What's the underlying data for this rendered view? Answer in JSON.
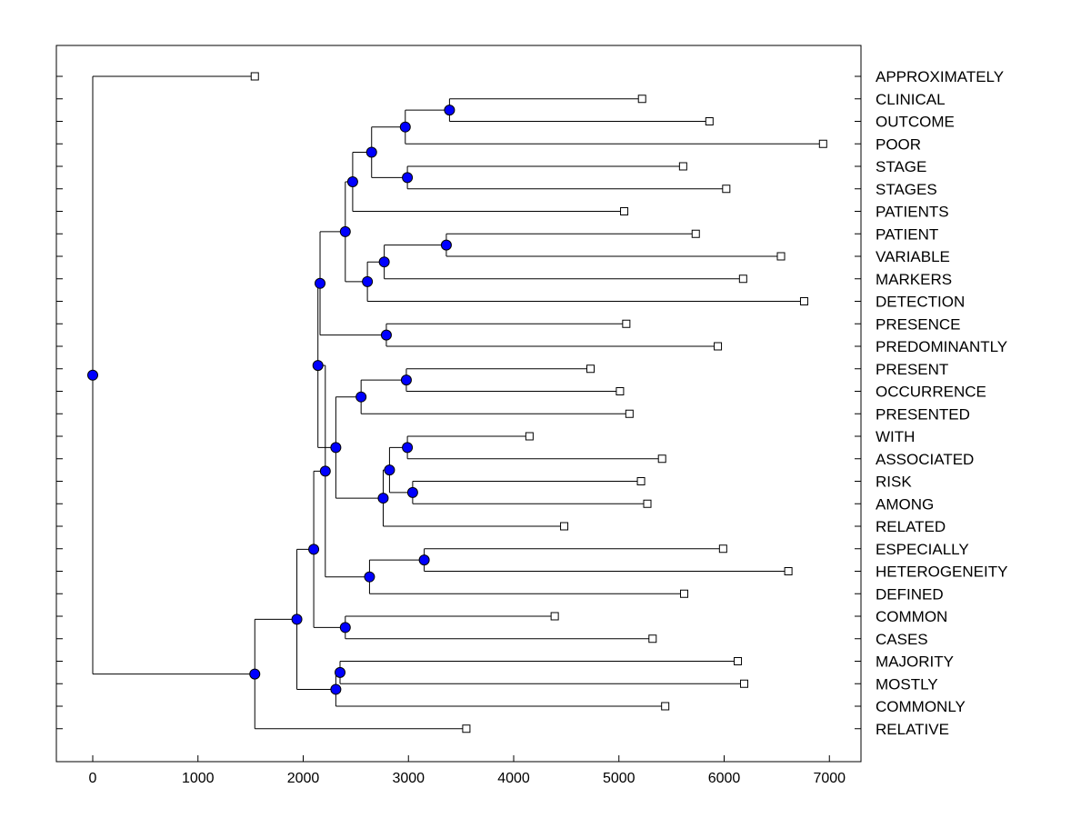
{
  "chart_data": {
    "type": "dendrogram",
    "title": "",
    "xlabel": "",
    "ylabel": "",
    "xlim": [
      -350,
      7300
    ],
    "xticks": [
      0,
      1000,
      2000,
      3000,
      4000,
      5000,
      6000,
      7000
    ],
    "xtick_labels": [
      "0",
      "1000",
      "2000",
      "3000",
      "4000",
      "5000",
      "6000",
      "7000"
    ],
    "colors": {
      "node": "#0000ff",
      "line": "#000000",
      "leaf_fill": "#ffffff"
    },
    "leaves": [
      {
        "label": "APPROXIMATELY",
        "value": 1540
      },
      {
        "label": "CLINICAL",
        "value": 5220
      },
      {
        "label": "OUTCOME",
        "value": 5860
      },
      {
        "label": "POOR",
        "value": 6940
      },
      {
        "label": "STAGE",
        "value": 5610
      },
      {
        "label": "STAGES",
        "value": 6020
      },
      {
        "label": "PATIENTS",
        "value": 5050
      },
      {
        "label": "PATIENT",
        "value": 5730
      },
      {
        "label": "VARIABLE",
        "value": 6540
      },
      {
        "label": "MARKERS",
        "value": 6180
      },
      {
        "label": "DETECTION",
        "value": 6760
      },
      {
        "label": "PRESENCE",
        "value": 5070
      },
      {
        "label": "PREDOMINANTLY",
        "value": 5940
      },
      {
        "label": "PRESENT",
        "value": 4730
      },
      {
        "label": "OCCURRENCE",
        "value": 5010
      },
      {
        "label": "PRESENTED",
        "value": 5100
      },
      {
        "label": "WITH",
        "value": 4150
      },
      {
        "label": "ASSOCIATED",
        "value": 5410
      },
      {
        "label": "RISK",
        "value": 5210
      },
      {
        "label": "AMONG",
        "value": 5270
      },
      {
        "label": "RELATED",
        "value": 4480
      },
      {
        "label": "ESPECIALLY",
        "value": 5990
      },
      {
        "label": "HETEROGENEITY",
        "value": 6610
      },
      {
        "label": "DEFINED",
        "value": 5620
      },
      {
        "label": "COMMON",
        "value": 4390
      },
      {
        "label": "CASES",
        "value": 5320
      },
      {
        "label": "MAJORITY",
        "value": 6130
      },
      {
        "label": "MOSTLY",
        "value": 6190
      },
      {
        "label": "COMMONLY",
        "value": 5440
      },
      {
        "label": "RELATIVE",
        "value": 3550
      }
    ],
    "merges": [
      {
        "id": "m1",
        "value": 3390,
        "children": [
          "L1",
          "L2"
        ]
      },
      {
        "id": "m2",
        "value": 2970,
        "children": [
          "m1",
          "L3"
        ]
      },
      {
        "id": "m3",
        "value": 2990,
        "children": [
          "L4",
          "L5"
        ]
      },
      {
        "id": "m4",
        "value": 2650,
        "children": [
          "m2",
          "m3"
        ]
      },
      {
        "id": "m5",
        "value": 2470,
        "children": [
          "m4",
          "L6"
        ]
      },
      {
        "id": "m6",
        "value": 3360,
        "children": [
          "L7",
          "L8"
        ]
      },
      {
        "id": "m7",
        "value": 2770,
        "children": [
          "m6",
          "L9"
        ]
      },
      {
        "id": "m8",
        "value": 2610,
        "children": [
          "m7",
          "L10"
        ]
      },
      {
        "id": "m9",
        "value": 2400,
        "children": [
          "m5",
          "m8"
        ]
      },
      {
        "id": "m10",
        "value": 2790,
        "children": [
          "L11",
          "L12"
        ]
      },
      {
        "id": "m11",
        "value": 2160,
        "children": [
          "m9",
          "m10"
        ]
      },
      {
        "id": "m12",
        "value": 2980,
        "children": [
          "L13",
          "L14"
        ]
      },
      {
        "id": "m13",
        "value": 2550,
        "children": [
          "m12",
          "L15"
        ]
      },
      {
        "id": "m14",
        "value": 2990,
        "children": [
          "L16",
          "L17"
        ]
      },
      {
        "id": "m15",
        "value": 3040,
        "children": [
          "L18",
          "L19"
        ]
      },
      {
        "id": "m16",
        "value": 2820,
        "children": [
          "m14",
          "m15"
        ]
      },
      {
        "id": "m17",
        "value": 2760,
        "children": [
          "m16",
          "L20"
        ]
      },
      {
        "id": "m18",
        "value": 2310,
        "children": [
          "m13",
          "m17"
        ]
      },
      {
        "id": "m19",
        "value": 2140,
        "children": [
          "m11",
          "m18"
        ]
      },
      {
        "id": "m20",
        "value": 3150,
        "children": [
          "L21",
          "L22"
        ]
      },
      {
        "id": "m21",
        "value": 2630,
        "children": [
          "m20",
          "L23"
        ]
      },
      {
        "id": "m22",
        "value": 2210,
        "children": [
          "m19",
          "m21"
        ]
      },
      {
        "id": "m23",
        "value": 2400,
        "children": [
          "L24",
          "L25"
        ]
      },
      {
        "id": "m24",
        "value": 2100,
        "children": [
          "m22",
          "m23"
        ]
      },
      {
        "id": "m25",
        "value": 2350,
        "children": [
          "L26",
          "L27"
        ]
      },
      {
        "id": "m26",
        "value": 2310,
        "children": [
          "m25",
          "L28"
        ]
      },
      {
        "id": "m27",
        "value": 1940,
        "children": [
          "m24",
          "m26"
        ]
      },
      {
        "id": "m28",
        "value": 1540,
        "children": [
          "m27",
          "L29"
        ]
      },
      {
        "id": "m29",
        "value": 0,
        "children": [
          "L0",
          "m28"
        ]
      }
    ]
  }
}
